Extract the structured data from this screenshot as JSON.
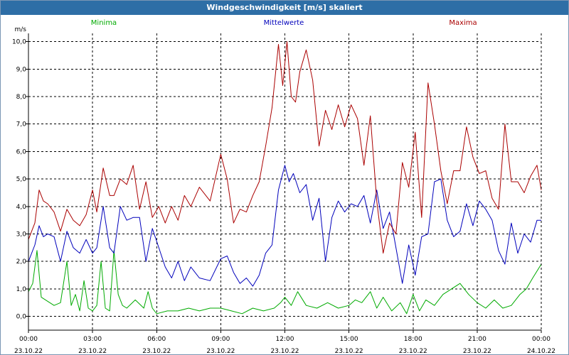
{
  "window": {
    "title": "Windgeschwindigkeit [m/s] skaliert"
  },
  "chart_data": {
    "type": "line",
    "ylabel": "m/s",
    "ylim": [
      -0.5,
      10.3
    ],
    "xlim": [
      0,
      24
    ],
    "grid": true,
    "y_ticks": [
      "0,0",
      "1,0",
      "2,0",
      "3,0",
      "4,0",
      "5,0",
      "6,0",
      "7,0",
      "8,0",
      "9,0",
      "10,0"
    ],
    "x_ticks": [
      {
        "time": "00:00",
        "date": "23.10.22"
      },
      {
        "time": "03:00",
        "date": "23.10.22"
      },
      {
        "time": "06:00",
        "date": "23.10.22"
      },
      {
        "time": "09:00",
        "date": "23.10.22"
      },
      {
        "time": "12:00",
        "date": "23.10.22"
      },
      {
        "time": "15:00",
        "date": "23.10.22"
      },
      {
        "time": "18:00",
        "date": "23.10.22"
      },
      {
        "time": "21:00",
        "date": "23.10.22"
      },
      {
        "time": "00:00",
        "date": "24.10.22"
      }
    ],
    "series": [
      {
        "name": "Minima",
        "color": "#00aa00",
        "x": [
          0,
          0.2,
          0.4,
          0.6,
          0.8,
          1.0,
          1.2,
          1.5,
          1.8,
          2.0,
          2.2,
          2.4,
          2.6,
          2.8,
          3.0,
          3.2,
          3.4,
          3.6,
          3.8,
          4.0,
          4.2,
          4.4,
          4.6,
          5.0,
          5.4,
          5.6,
          5.8,
          6.0,
          6.5,
          7.0,
          7.5,
          8.0,
          8.5,
          9.0,
          9.5,
          10.0,
          10.5,
          11.0,
          11.5,
          11.8,
          12.0,
          12.3,
          12.6,
          13.0,
          13.5,
          14.0,
          14.5,
          15.0,
          15.3,
          15.6,
          16.0,
          16.3,
          16.6,
          17.0,
          17.4,
          17.7,
          18.0,
          18.3,
          18.6,
          19.0,
          19.4,
          19.8,
          20.2,
          20.6,
          21.0,
          21.4,
          21.8,
          22.2,
          22.6,
          23.0,
          23.3,
          23.6,
          24.0
        ],
        "values": [
          0.9,
          1.2,
          2.4,
          0.7,
          0.6,
          0.5,
          0.4,
          0.5,
          2.0,
          0.4,
          0.8,
          0.2,
          1.3,
          0.3,
          0.2,
          0.4,
          2.0,
          0.3,
          0.2,
          2.4,
          0.8,
          0.4,
          0.3,
          0.6,
          0.3,
          0.9,
          0.3,
          0.1,
          0.2,
          0.2,
          0.3,
          0.2,
          0.3,
          0.3,
          0.2,
          0.1,
          0.3,
          0.2,
          0.3,
          0.5,
          0.7,
          0.4,
          0.9,
          0.4,
          0.3,
          0.5,
          0.3,
          0.4,
          0.6,
          0.5,
          0.9,
          0.3,
          0.7,
          0.2,
          0.5,
          0.1,
          0.8,
          0.2,
          0.6,
          0.4,
          0.8,
          1.0,
          1.2,
          0.8,
          0.5,
          0.3,
          0.6,
          0.3,
          0.4,
          0.8,
          1.0,
          1.4,
          1.9
        ]
      },
      {
        "name": "Mittelwerte",
        "color": "#0000bb",
        "x": [
          0,
          0.3,
          0.5,
          0.7,
          0.9,
          1.2,
          1.5,
          1.8,
          2.1,
          2.4,
          2.7,
          3.0,
          3.2,
          3.5,
          3.8,
          4.0,
          4.3,
          4.6,
          4.9,
          5.2,
          5.5,
          5.8,
          6.1,
          6.4,
          6.7,
          7.0,
          7.3,
          7.6,
          8.0,
          8.5,
          9.0,
          9.3,
          9.6,
          9.9,
          10.2,
          10.5,
          10.8,
          11.1,
          11.4,
          11.7,
          12.0,
          12.2,
          12.4,
          12.7,
          13.0,
          13.3,
          13.6,
          13.9,
          14.2,
          14.5,
          14.8,
          15.1,
          15.4,
          15.7,
          16.0,
          16.3,
          16.6,
          16.9,
          17.2,
          17.5,
          17.8,
          18.1,
          18.4,
          18.7,
          19.0,
          19.3,
          19.6,
          19.9,
          20.2,
          20.5,
          20.8,
          21.1,
          21.4,
          21.7,
          22.0,
          22.3,
          22.6,
          22.9,
          23.2,
          23.5,
          23.8,
          24.0
        ],
        "values": [
          2.0,
          2.6,
          3.3,
          2.9,
          3.0,
          2.9,
          2.0,
          3.1,
          2.5,
          2.3,
          2.8,
          2.3,
          2.5,
          4.0,
          2.5,
          2.3,
          4.0,
          3.5,
          3.6,
          3.6,
          2.0,
          3.2,
          2.5,
          1.8,
          1.4,
          2.0,
          1.3,
          1.8,
          1.4,
          1.3,
          2.1,
          2.2,
          1.6,
          1.2,
          1.4,
          1.1,
          1.5,
          2.3,
          2.6,
          4.6,
          5.5,
          4.9,
          5.2,
          4.5,
          4.8,
          3.5,
          4.3,
          2.0,
          3.6,
          4.2,
          3.8,
          4.1,
          4.0,
          4.4,
          3.4,
          4.6,
          3.2,
          3.8,
          2.5,
          1.2,
          2.6,
          1.5,
          2.9,
          3.0,
          4.9,
          5.0,
          3.5,
          2.9,
          3.1,
          4.1,
          3.3,
          4.2,
          3.9,
          3.5,
          2.4,
          1.9,
          3.4,
          2.3,
          3.0,
          2.7,
          3.5,
          3.5
        ]
      },
      {
        "name": "Maxima",
        "color": "#aa0000",
        "x": [
          0,
          0.3,
          0.5,
          0.7,
          0.9,
          1.2,
          1.5,
          1.8,
          2.1,
          2.4,
          2.7,
          3.0,
          3.2,
          3.5,
          3.8,
          4.0,
          4.3,
          4.6,
          4.9,
          5.2,
          5.5,
          5.8,
          6.1,
          6.4,
          6.7,
          7.0,
          7.3,
          7.6,
          8.0,
          8.5,
          9.0,
          9.3,
          9.6,
          9.9,
          10.2,
          10.5,
          10.8,
          11.1,
          11.4,
          11.7,
          11.9,
          12.1,
          12.3,
          12.5,
          12.7,
          13.0,
          13.3,
          13.6,
          13.9,
          14.2,
          14.5,
          14.8,
          15.1,
          15.4,
          15.7,
          16.0,
          16.3,
          16.6,
          16.9,
          17.2,
          17.5,
          17.8,
          18.1,
          18.4,
          18.7,
          19.0,
          19.3,
          19.6,
          19.9,
          20.2,
          20.5,
          20.8,
          21.1,
          21.4,
          21.7,
          22.0,
          22.3,
          22.6,
          22.9,
          23.2,
          23.5,
          23.8,
          24.0
        ],
        "values": [
          2.8,
          3.4,
          4.6,
          4.2,
          4.1,
          3.8,
          3.1,
          3.9,
          3.5,
          3.3,
          3.7,
          4.6,
          3.8,
          5.4,
          4.4,
          4.4,
          5.0,
          4.8,
          5.5,
          3.9,
          4.9,
          3.6,
          4.0,
          3.4,
          4.0,
          3.5,
          4.4,
          4.0,
          4.7,
          4.2,
          5.9,
          5.0,
          3.4,
          3.9,
          3.8,
          4.4,
          4.9,
          6.2,
          7.6,
          9.9,
          8.4,
          10.0,
          8.0,
          7.8,
          8.9,
          9.7,
          8.6,
          6.2,
          7.5,
          6.8,
          7.7,
          6.9,
          7.7,
          7.2,
          5.5,
          7.3,
          4.2,
          2.3,
          3.4,
          3.0,
          5.6,
          4.7,
          6.7,
          3.6,
          8.5,
          7.0,
          5.3,
          4.1,
          5.3,
          5.3,
          6.9,
          5.8,
          5.2,
          5.3,
          4.3,
          3.9,
          7.0,
          4.9,
          4.9,
          4.5,
          5.1,
          5.5,
          4.6
        ]
      }
    ]
  }
}
